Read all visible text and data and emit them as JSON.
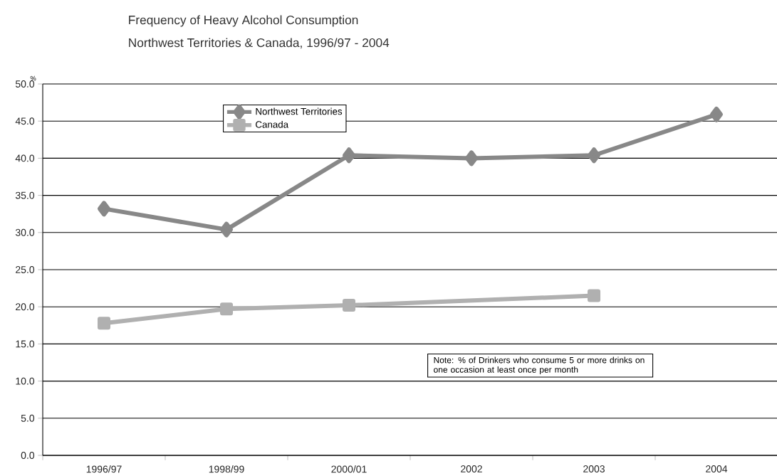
{
  "chart_data": {
    "type": "line",
    "title": "Frequency of Heavy Alcohol Consumption",
    "subtitle": "Northwest Territories & Canada, 1996/97 - 2004",
    "ylabel": "%",
    "categories": [
      "1996/97",
      "1998/99",
      "2000/01",
      "2002",
      "2003",
      "2004"
    ],
    "series": [
      {
        "name": "Northwest Territories",
        "color": "#888888",
        "marker": "diamond",
        "values": [
          33.2,
          30.4,
          40.4,
          40.0,
          40.4,
          45.9
        ]
      },
      {
        "name": "Canada",
        "color": "#b0b0b0",
        "marker": "square",
        "values": [
          17.8,
          19.7,
          20.2,
          null,
          21.5,
          null
        ]
      }
    ],
    "ylim": [
      0,
      50
    ],
    "yticks": [
      {
        "value": 0,
        "label": "0.0"
      },
      {
        "value": 5,
        "label": "5.0"
      },
      {
        "value": 10,
        "label": "10.0"
      },
      {
        "value": 15,
        "label": "15.0"
      },
      {
        "value": 20,
        "label": "20.0"
      },
      {
        "value": 25,
        "label": "25.0"
      },
      {
        "value": 30,
        "label": "30.0"
      },
      {
        "value": 35,
        "label": "35.0"
      },
      {
        "value": 40,
        "label": "40.0"
      },
      {
        "value": 45,
        "label": "45.0"
      },
      {
        "value": 50,
        "label": "50.0"
      }
    ],
    "grid": "y",
    "legend": "top",
    "line_style": "solid",
    "annotations": [
      "Note: % of Drinkers who consume 5 or more drinks on one occasion at least once per month"
    ]
  }
}
